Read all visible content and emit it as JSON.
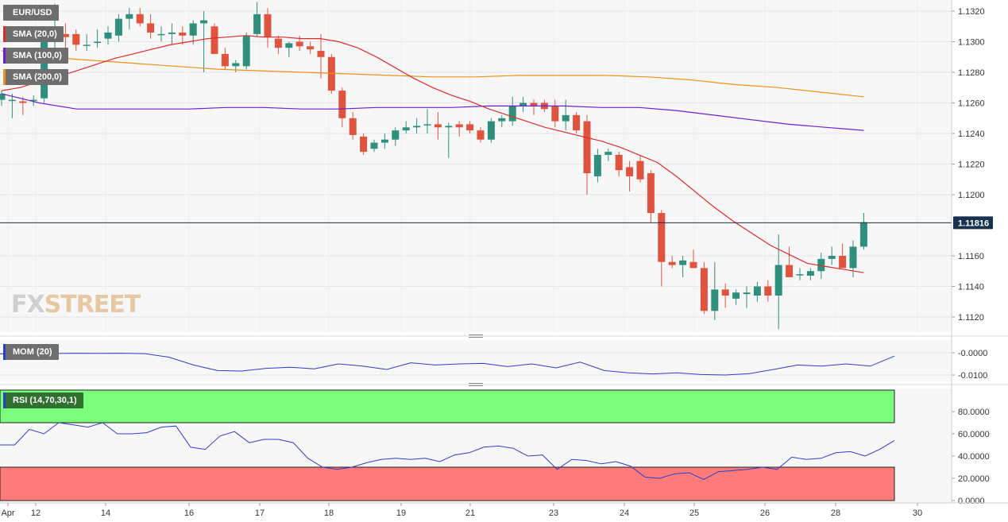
{
  "symbol": "EUR/USD",
  "watermark": {
    "fx": "FX",
    "street": "STREET"
  },
  "indicators": {
    "sma20": {
      "label": "SMA (20,0)",
      "color": "#e02b2b"
    },
    "sma100": {
      "label": "SMA (100,0)",
      "color": "#6a1fd0"
    },
    "sma200": {
      "label": "SMA (200,0)",
      "color": "#f0901a"
    },
    "mom": {
      "label": "MOM (20)",
      "color": "#2a3fc7"
    },
    "rsi": {
      "label": "RSI (14,70,30,1)",
      "color": "#2a3fc7"
    }
  },
  "colors": {
    "up": "#2f8f7c",
    "down": "#e0533e",
    "rsi_overbought_zone": "#7cfc7c",
    "rsi_oversold_zone": "#ff7b7b",
    "last_price_bg": "#16324f"
  },
  "chart_data": [
    {
      "type": "candlestick",
      "title": "EUR/USD",
      "interval_note": "4-hour candles",
      "ylim": [
        1.111,
        1.1325
      ],
      "yticks": [
        "1.1320",
        "1.1300",
        "1.1280",
        "1.1260",
        "1.1240",
        "1.1220",
        "1.1200",
        "1.1160",
        "1.1140",
        "1.1120"
      ],
      "last_price": "1.11816",
      "x_tick_labels": [
        "Apr",
        "12",
        "14",
        "16",
        "17",
        "18",
        "19",
        "21",
        "23",
        "24",
        "25",
        "26",
        "28",
        "30"
      ],
      "candles": [
        [
          1.1262,
          1.1268,
          1.1258,
          1.1266
        ],
        [
          1.1262,
          1.1266,
          1.125,
          1.1262
        ],
        [
          1.1261,
          1.1264,
          1.1252,
          1.126
        ],
        [
          1.1262,
          1.1265,
          1.1258,
          1.1262
        ],
        [
          1.1263,
          1.1305,
          1.126,
          1.1302
        ],
        [
          1.13,
          1.1325,
          1.1296,
          1.1305
        ],
        [
          1.1305,
          1.1312,
          1.1296,
          1.1303
        ],
        [
          1.1305,
          1.1308,
          1.1294,
          1.1298
        ],
        [
          1.1298,
          1.1305,
          1.1294,
          1.1298
        ],
        [
          1.13,
          1.1308,
          1.1296,
          1.13
        ],
        [
          1.1302,
          1.131,
          1.1298,
          1.1306
        ],
        [
          1.1304,
          1.1318,
          1.13,
          1.1315
        ],
        [
          1.1315,
          1.1322,
          1.1308,
          1.1318
        ],
        [
          1.1318,
          1.1322,
          1.131,
          1.1312
        ],
        [
          1.1312,
          1.1318,
          1.1302,
          1.1306
        ],
        [
          1.1305,
          1.131,
          1.13,
          1.1305
        ],
        [
          1.1305,
          1.1312,
          1.1298,
          1.1306
        ],
        [
          1.1306,
          1.131,
          1.1298,
          1.1304
        ],
        [
          1.1304,
          1.1314,
          1.1298,
          1.1312
        ],
        [
          1.1312,
          1.132,
          1.128,
          1.1314
        ],
        [
          1.131,
          1.1312,
          1.1292,
          1.1292
        ],
        [
          1.1292,
          1.1296,
          1.1282,
          1.1284
        ],
        [
          1.1284,
          1.1288,
          1.128,
          1.1286
        ],
        [
          1.1284,
          1.1306,
          1.1282,
          1.1304
        ],
        [
          1.1305,
          1.1326,
          1.1303,
          1.1318
        ],
        [
          1.1318,
          1.1322,
          1.1296,
          1.1303
        ],
        [
          1.1302,
          1.1304,
          1.1292,
          1.1296
        ],
        [
          1.1296,
          1.13,
          1.129,
          1.1299
        ],
        [
          1.13,
          1.1304,
          1.1294,
          1.1297
        ],
        [
          1.1297,
          1.13,
          1.1292,
          1.1295
        ],
        [
          1.1294,
          1.1305,
          1.1276,
          1.129
        ],
        [
          1.129,
          1.1292,
          1.1266,
          1.1268
        ],
        [
          1.1268,
          1.127,
          1.1244,
          1.125
        ],
        [
          1.125,
          1.1254,
          1.1236,
          1.1239
        ],
        [
          1.1238,
          1.124,
          1.1226,
          1.1228
        ],
        [
          1.123,
          1.1236,
          1.1228,
          1.1234
        ],
        [
          1.1234,
          1.124,
          1.123,
          1.1236
        ],
        [
          1.1236,
          1.1244,
          1.1232,
          1.1242
        ],
        [
          1.1242,
          1.1248,
          1.124,
          1.1244
        ],
        [
          1.1244,
          1.125,
          1.124,
          1.1245
        ],
        [
          1.1246,
          1.1256,
          1.124,
          1.1246
        ],
        [
          1.1246,
          1.1254,
          1.1236,
          1.1244
        ],
        [
          1.1244,
          1.1247,
          1.1224,
          1.1245
        ],
        [
          1.1246,
          1.1248,
          1.1238,
          1.1244
        ],
        [
          1.1246,
          1.1248,
          1.124,
          1.1242
        ],
        [
          1.1242,
          1.1244,
          1.1234,
          1.1236
        ],
        [
          1.1236,
          1.125,
          1.1234,
          1.1248
        ],
        [
          1.1248,
          1.1252,
          1.1244,
          1.125
        ],
        [
          1.1248,
          1.1264,
          1.1245,
          1.1258
        ],
        [
          1.1258,
          1.1264,
          1.1254,
          1.126
        ],
        [
          1.126,
          1.1262,
          1.1252,
          1.1258
        ],
        [
          1.126,
          1.1262,
          1.1254,
          1.1256
        ],
        [
          1.1258,
          1.1262,
          1.1244,
          1.1248
        ],
        [
          1.1248,
          1.1262,
          1.1242,
          1.1252
        ],
        [
          1.1252,
          1.1254,
          1.124,
          1.1242
        ],
        [
          1.1248,
          1.1252,
          1.12,
          1.1214
        ],
        [
          1.1212,
          1.123,
          1.1208,
          1.1226
        ],
        [
          1.1226,
          1.123,
          1.1222,
          1.1228
        ],
        [
          1.1226,
          1.1228,
          1.1212,
          1.1216
        ],
        [
          1.1218,
          1.1222,
          1.1202,
          1.1212
        ],
        [
          1.1222,
          1.1226,
          1.1208,
          1.121
        ],
        [
          1.1214,
          1.1216,
          1.1182,
          1.1188
        ],
        [
          1.1188,
          1.119,
          1.114,
          1.1156
        ],
        [
          1.1156,
          1.116,
          1.1152,
          1.1154
        ],
        [
          1.1154,
          1.116,
          1.1146,
          1.1157
        ],
        [
          1.1156,
          1.1164,
          1.1152,
          1.1152
        ],
        [
          1.1152,
          1.1156,
          1.1122,
          1.1124
        ],
        [
          1.1124,
          1.1156,
          1.1118,
          1.1138
        ],
        [
          1.1138,
          1.1142,
          1.1126,
          1.1134
        ],
        [
          1.1132,
          1.1138,
          1.1128,
          1.1136
        ],
        [
          1.1135,
          1.114,
          1.1126,
          1.1136
        ],
        [
          1.1134,
          1.1143,
          1.113,
          1.114
        ],
        [
          1.114,
          1.1144,
          1.113,
          1.1134
        ],
        [
          1.1134,
          1.1174,
          1.1112,
          1.1154
        ],
        [
          1.1154,
          1.1166,
          1.1148,
          1.1146
        ],
        [
          1.1148,
          1.1152,
          1.1144,
          1.1148
        ],
        [
          1.1147,
          1.1152,
          1.1144,
          1.115
        ],
        [
          1.115,
          1.1162,
          1.1145,
          1.1158
        ],
        [
          1.1158,
          1.1166,
          1.1154,
          1.116
        ],
        [
          1.116,
          1.1168,
          1.1152,
          1.1152
        ],
        [
          1.1152,
          1.117,
          1.1146,
          1.1166
        ],
        [
          1.1166,
          1.1188,
          1.1164,
          1.1182
        ]
      ],
      "sma20": [
        1.1268,
        1.127,
        1.1274,
        1.1277,
        1.1281,
        1.1285,
        1.1289,
        1.1292,
        1.1295,
        1.1298,
        1.13,
        1.1302,
        1.1303,
        1.1304,
        1.1303,
        1.1303,
        1.1302,
        1.1302,
        1.13,
        1.1296,
        1.129,
        1.1283,
        1.1276,
        1.127,
        1.1265,
        1.1261,
        1.1256,
        1.1252,
        1.1248,
        1.1244,
        1.1241,
        1.1238,
        1.1235,
        1.1231,
        1.1226,
        1.1221,
        1.1212,
        1.1202,
        1.1192,
        1.1183,
        1.1175,
        1.1167,
        1.1161,
        1.1155,
        1.1153,
        1.1151,
        1.1149
      ],
      "sma20_offset": 35,
      "sma100": [
        1.1266,
        1.126,
        1.1256,
        1.1256,
        1.1256,
        1.1256,
        1.1257,
        1.1257,
        1.1256,
        1.1256,
        1.1257,
        1.1257,
        1.1257,
        1.1258,
        1.1258,
        1.1258,
        1.1257,
        1.1257,
        1.1255,
        1.1252,
        1.1249,
        1.1246,
        1.1244,
        1.1242
      ],
      "sma200": [
        1.1294,
        1.129,
        1.1288,
        1.1286,
        1.1284,
        1.1282,
        1.1281,
        1.128,
        1.1279,
        1.1278,
        1.1277,
        1.1277,
        1.1278,
        1.1278,
        1.1278,
        1.1277,
        1.1275,
        1.1272,
        1.127,
        1.1267,
        1.1264
      ],
      "mom": [
        -0.0005,
        -0.0003,
        -0.0004,
        -0.0002,
        -0.0003,
        -0.0002,
        -0.0004,
        -0.002,
        -0.0055,
        -0.008,
        -0.0082,
        -0.007,
        -0.0065,
        -0.0072,
        -0.005,
        -0.006,
        -0.0075,
        -0.0045,
        -0.0055,
        -0.005,
        -0.0048,
        -0.0062,
        -0.005,
        -0.0068,
        -0.0042,
        -0.008,
        -0.009,
        -0.0095,
        -0.009,
        -0.0098,
        -0.01,
        -0.0094,
        -0.0075,
        -0.0055,
        -0.006,
        -0.005,
        -0.006,
        -0.0015
      ],
      "mom_yticks": [
        "-0.0000",
        "-0.0100"
      ],
      "rsi": [
        50,
        50,
        64,
        60,
        70,
        68,
        66,
        70,
        60,
        60,
        61,
        66,
        67,
        48,
        46,
        58,
        62,
        52,
        55,
        55,
        52,
        38,
        30,
        28,
        30,
        34,
        37,
        38,
        37,
        38,
        35,
        41,
        43,
        48,
        49,
        47,
        40,
        41,
        28,
        37,
        36,
        33,
        35,
        31,
        21,
        20,
        24,
        25,
        19,
        26,
        27,
        28,
        30,
        28,
        39,
        37,
        38,
        43,
        44,
        40,
        46,
        54
      ],
      "rsi_yticks": [
        "80.0000",
        "60.0000",
        "40.0000",
        "20.0000",
        "0.0000"
      ],
      "rsi_overbought": 70,
      "rsi_oversold": 30
    }
  ]
}
